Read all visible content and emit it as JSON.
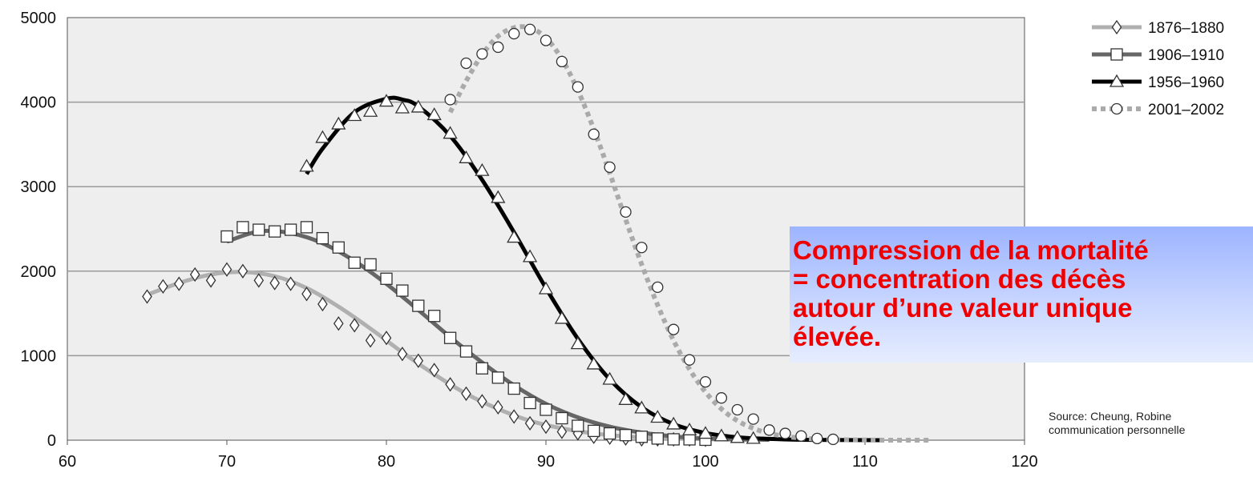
{
  "chart_data": {
    "type": "line",
    "x_ticks": [
      60,
      70,
      80,
      90,
      100,
      110,
      120
    ],
    "y_ticks": [
      0,
      1000,
      2000,
      3000,
      4000,
      5000
    ],
    "xlim": [
      60,
      120
    ],
    "ylim": [
      0,
      5000
    ],
    "grid": "horizontal",
    "legend_position": "top-right",
    "series": [
      {
        "name": "1876–1880",
        "marker": "diamond",
        "line_color": "#b0b0b0",
        "line_style": "solid",
        "x": [
          65,
          66,
          67,
          68,
          69,
          70,
          71,
          72,
          73,
          74,
          75,
          76,
          77,
          78,
          79,
          80,
          81,
          82,
          83,
          84,
          85,
          86,
          87,
          88,
          89,
          90,
          91,
          92,
          93,
          94,
          95,
          96,
          97,
          98,
          99,
          100
        ],
        "y": [
          1700,
          1820,
          1850,
          1960,
          1890,
          2020,
          2000,
          1890,
          1860,
          1850,
          1730,
          1610,
          1380,
          1360,
          1180,
          1210,
          1020,
          940,
          830,
          660,
          550,
          460,
          390,
          280,
          200,
          160,
          100,
          80,
          40,
          30,
          20,
          10,
          10,
          10,
          10,
          5
        ],
        "fit_x": [
          65,
          67,
          69,
          71,
          73,
          75,
          77,
          79,
          81,
          83,
          85,
          87,
          89,
          91,
          93,
          95,
          97,
          99,
          101,
          103
        ],
        "fit_y": [
          1720,
          1860,
          1960,
          1990,
          1940,
          1800,
          1580,
          1320,
          1040,
          780,
          550,
          370,
          230,
          140,
          80,
          45,
          25,
          15,
          10,
          5
        ]
      },
      {
        "name": "1906–1910",
        "marker": "square",
        "line_color": "#666666",
        "line_style": "solid",
        "x": [
          70,
          71,
          72,
          73,
          74,
          75,
          76,
          77,
          78,
          79,
          80,
          81,
          82,
          83,
          84,
          85,
          86,
          87,
          88,
          89,
          90,
          91,
          92,
          93,
          94,
          95,
          96,
          97,
          98,
          99,
          100
        ],
        "y": [
          2410,
          2520,
          2490,
          2470,
          2490,
          2520,
          2390,
          2280,
          2100,
          2080,
          1910,
          1770,
          1590,
          1470,
          1210,
          1050,
          850,
          740,
          610,
          440,
          360,
          260,
          170,
          110,
          80,
          60,
          40,
          20,
          10,
          10,
          5
        ],
        "fit_x": [
          70,
          72,
          74,
          76,
          78,
          80,
          82,
          84,
          86,
          88,
          90,
          92,
          94,
          96,
          98,
          100,
          102,
          104
        ],
        "fit_y": [
          2350,
          2470,
          2450,
          2330,
          2120,
          1850,
          1540,
          1220,
          920,
          650,
          430,
          270,
          160,
          90,
          45,
          20,
          10,
          5
        ]
      },
      {
        "name": "1956–1960",
        "marker": "triangle",
        "line_color": "#000000",
        "line_style": "solid",
        "x": [
          75,
          76,
          77,
          78,
          79,
          80,
          81,
          82,
          83,
          84,
          85,
          86,
          87,
          88,
          89,
          90,
          91,
          92,
          93,
          94,
          95,
          96,
          97,
          98,
          99,
          100,
          101,
          102,
          103
        ],
        "y": [
          3240,
          3580,
          3740,
          3840,
          3890,
          4010,
          3930,
          3940,
          3850,
          3630,
          3340,
          3190,
          2870,
          2400,
          2170,
          1790,
          1440,
          1140,
          900,
          720,
          480,
          380,
          270,
          190,
          120,
          80,
          50,
          30,
          20
        ],
        "fit_x": [
          75,
          76,
          78,
          80,
          81,
          82,
          84,
          86,
          88,
          90,
          92,
          94,
          96,
          98,
          100,
          102,
          104,
          106,
          108,
          111
        ],
        "fit_y": [
          3150,
          3450,
          3880,
          4040,
          4030,
          3950,
          3600,
          3080,
          2460,
          1800,
          1200,
          720,
          390,
          190,
          85,
          35,
          15,
          5,
          2,
          0
        ]
      },
      {
        "name": "2001–2002",
        "marker": "circle",
        "line_color": "#aaaaaa",
        "line_style": "dotted",
        "x": [
          84,
          85,
          86,
          87,
          88,
          89,
          90,
          91,
          92,
          93,
          94,
          95,
          96,
          97,
          98,
          99,
          100,
          101,
          102,
          103,
          104,
          105,
          106,
          107,
          108
        ],
        "y": [
          4030,
          4460,
          4570,
          4650,
          4810,
          4860,
          4730,
          4480,
          4180,
          3620,
          3230,
          2700,
          2280,
          1810,
          1310,
          950,
          690,
          500,
          360,
          250,
          120,
          80,
          50,
          20,
          10
        ],
        "fit_x": [
          84,
          85,
          86,
          87,
          88,
          89,
          90,
          91,
          92,
          93,
          94,
          95,
          96,
          97,
          98,
          99,
          100,
          101,
          102,
          103,
          104,
          105,
          106,
          107,
          108,
          110,
          112,
          114
        ],
        "fit_y": [
          3880,
          4250,
          4560,
          4780,
          4880,
          4880,
          4760,
          4510,
          4140,
          3680,
          3160,
          2610,
          2080,
          1600,
          1180,
          840,
          570,
          370,
          230,
          140,
          80,
          45,
          25,
          12,
          6,
          2,
          0,
          0
        ]
      }
    ]
  },
  "callout": {
    "text": "Compression de la mortalité\n= concentration des décès\nautour d’une valeur unique\nélevée."
  },
  "source_note": {
    "line1": "Source: Cheung, Robine",
    "line2": "communication personnelle"
  },
  "colors": {
    "plot_bg": "#eeeeee",
    "gridline": "#999999",
    "callout_text": "#ee0000"
  }
}
